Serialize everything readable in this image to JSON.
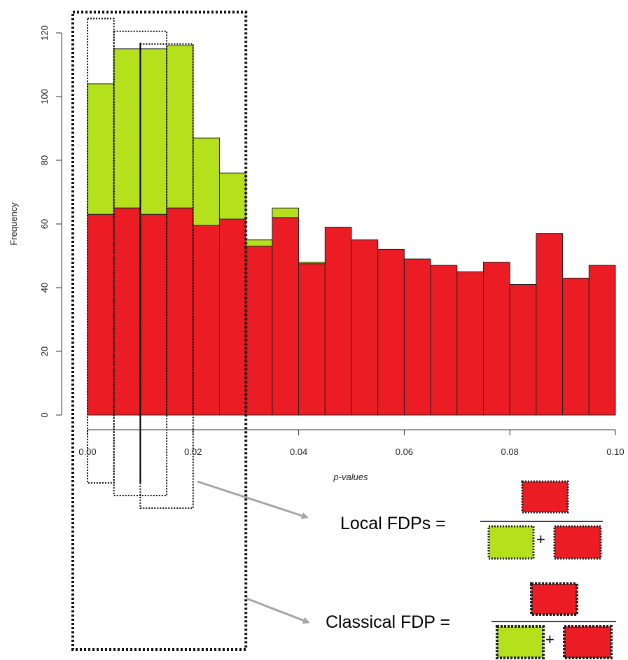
{
  "chart_data": {
    "type": "bar",
    "xlabel": "p-values",
    "ylabel": "Frequency",
    "xlim": [
      0,
      0.1
    ],
    "ylim": [
      0,
      120
    ],
    "xticks": [
      "0.00",
      "0.02",
      "0.04",
      "0.06",
      "0.08",
      "0.10"
    ],
    "yticks": [
      "0",
      "20",
      "40",
      "60",
      "80",
      "100",
      "120"
    ],
    "bin_width": 0.005,
    "bin_starts": [
      0.0,
      0.005,
      0.01,
      0.015,
      0.02,
      0.025,
      0.03,
      0.035,
      0.04,
      0.045,
      0.05,
      0.055,
      0.06,
      0.065,
      0.07,
      0.075,
      0.08,
      0.085,
      0.09,
      0.095
    ],
    "series": [
      {
        "values": [
          63,
          65,
          63,
          65,
          59.5,
          61.5,
          53,
          62,
          47.5,
          59,
          55,
          52,
          49,
          47,
          45,
          48,
          41,
          57,
          43,
          47
        ]
      },
      {
        "values": [
          41,
          50,
          52,
          51,
          27.5,
          14.5,
          2,
          3,
          0.5,
          0,
          0,
          0,
          0,
          0,
          0,
          0,
          0,
          0,
          0,
          0
        ]
      }
    ],
    "colors": {
      "red": "#ec1c24",
      "green": "#b5e01c",
      "outline": "#222222",
      "arrow": "#a6a6a6"
    },
    "windows": [
      {
        "x0": 0.0,
        "x1": 0.005,
        "y_top": 124.5
      },
      {
        "x0": 0.005,
        "x1": 0.015,
        "y_top": 120.5
      },
      {
        "x0": 0.01,
        "x1": 0.02,
        "y_top": 116.5
      },
      {
        "x0": 0.0,
        "x1": 0.03,
        "y_top": 126.5
      }
    ],
    "vline_x": 0.01
  },
  "formulas": {
    "local_label": "Local FDPs =",
    "classical_label": "Classical FDP =",
    "plus": "+"
  }
}
